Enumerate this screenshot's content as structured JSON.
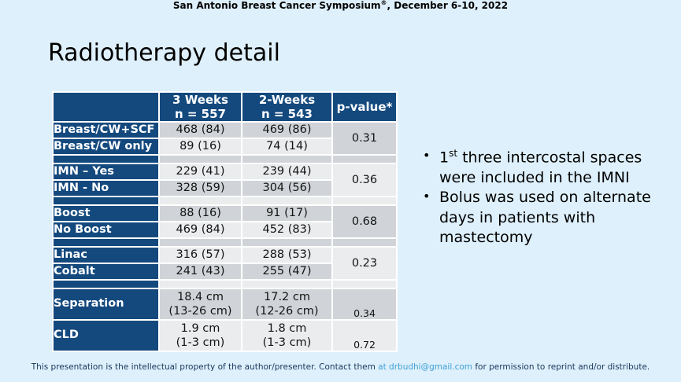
{
  "slide": {
    "conference_header": {
      "pre": "San Antonio Breast Cancer Symposium",
      "sup": "®",
      "post": ", December 6-10, 2022"
    },
    "title": "Radiotherapy detail"
  },
  "colors": {
    "background": "#def0fb",
    "table_navy": "#14497e",
    "band_gray": "#d0d4d8",
    "band_light": "#eaecee",
    "link_blue": "#41a0d8",
    "footer_text": "#17365d"
  },
  "table": {
    "header": {
      "week3_line1": "3 Weeks",
      "week3_line2": "n = 557",
      "week2_line1": "2-Weeks",
      "week2_line2": "n = 543",
      "pvalue": "p-value*"
    },
    "groups": [
      {
        "p": "0.31",
        "rows": [
          {
            "label": "Breast/CW+SCF",
            "w3": "468 (84)",
            "w2": "469 (86)"
          },
          {
            "label": "Breast/CW only",
            "w3": "89 (16)",
            "w2": "74 (14)"
          }
        ]
      },
      {
        "p": "0.36",
        "rows": [
          {
            "label": "IMN – Yes",
            "w3": "229 (41)",
            "w2": "239 (44)"
          },
          {
            "label": "IMN - No",
            "w3": "328 (59)",
            "w2": "304 (56)"
          }
        ]
      },
      {
        "p": "0.68",
        "rows": [
          {
            "label": "Boost",
            "w3": "88 (16)",
            "w2": "91 (17)"
          },
          {
            "label": "No Boost",
            "w3": "469 (84)",
            "w2": "452 (83)"
          }
        ]
      },
      {
        "p": "0.23",
        "rows": [
          {
            "label": "Linac",
            "w3": "316 (57)",
            "w2": "288 (53)"
          },
          {
            "label": "Cobalt",
            "w3": "241 (43)",
            "w2": "255 (47)"
          }
        ]
      }
    ],
    "measure_rows": [
      {
        "label": "Separation",
        "w3_line1": "18.4 cm",
        "w3_line2": "(13-26 cm)",
        "w2_line1": "17.2 cm",
        "w2_line2": "(12-26 cm)",
        "p": "0.34"
      },
      {
        "label": "CLD",
        "w3_line1": "1.9 cm",
        "w3_line2": "(1-3 cm)",
        "w2_line1": "1.8 cm",
        "w2_line2": "(1-3 cm)",
        "p": "0.72"
      }
    ]
  },
  "bullets": {
    "item1": {
      "num": "1",
      "sup": "st",
      "rest": " three intercostal spaces were included in the IMNI"
    },
    "item2": {
      "text": "Bolus was used on alternate days in patients with mastectomy"
    },
    "marker": "•"
  },
  "footer": {
    "pre": "This presentation is the intellectual property of the author/presenter. Contact them",
    "link": "at  drbudhi@gmail.com",
    "post": "for permission to reprint and/or distribute."
  },
  "chart_data": {
    "type": "table",
    "title": "Radiotherapy detail",
    "columns": [
      "",
      "3 Weeks n = 557",
      "2-Weeks n = 543",
      "p-value*"
    ],
    "rows": [
      [
        "Breast/CW+SCF",
        "468 (84)",
        "469 (86)",
        "0.31"
      ],
      [
        "Breast/CW only",
        "89 (16)",
        "74 (14)",
        ""
      ],
      [
        "IMN – Yes",
        "229 (41)",
        "239 (44)",
        "0.36"
      ],
      [
        "IMN - No",
        "328 (59)",
        "304 (56)",
        ""
      ],
      [
        "Boost",
        "88 (16)",
        "91 (17)",
        "0.68"
      ],
      [
        "No Boost",
        "469 (84)",
        "452 (83)",
        ""
      ],
      [
        "Linac",
        "316 (57)",
        "288 (53)",
        "0.23"
      ],
      [
        "Cobalt",
        "241 (43)",
        "255 (47)",
        ""
      ],
      [
        "Separation",
        "18.4 cm (13-26 cm)",
        "17.2 cm (12-26 cm)",
        "0.34"
      ],
      [
        "CLD",
        "1.9 cm (1-3 cm)",
        "1.8 cm (1-3 cm)",
        "0.72"
      ]
    ]
  }
}
